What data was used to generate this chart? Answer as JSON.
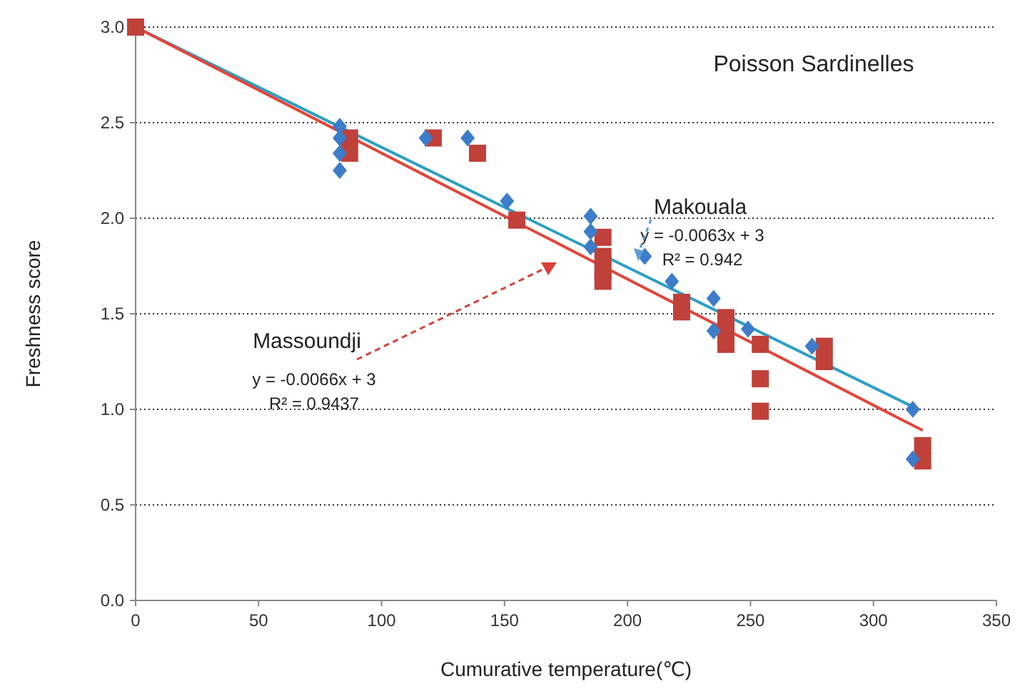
{
  "chart_data": {
    "type": "scatter",
    "title": "Poisson Sardinelles",
    "xlabel": "Cumurative temperature(℃)",
    "ylabel": "Freshness score",
    "xlim": [
      0,
      350
    ],
    "xticks": [
      0,
      50,
      100,
      150,
      200,
      250,
      300,
      350
    ],
    "ylim": [
      0,
      3
    ],
    "yticks": [
      {
        "value": 0,
        "label": "0.0"
      },
      {
        "value": 0.5,
        "label": "0.5"
      },
      {
        "value": 1,
        "label": "1.0"
      },
      {
        "value": 1.5,
        "label": "1.5"
      },
      {
        "value": 2,
        "label": "2.0"
      },
      {
        "value": 2.5,
        "label": "2.5"
      },
      {
        "value": 3,
        "label": "3.0"
      }
    ],
    "grid": "y",
    "series": [
      {
        "marker": "diamond",
        "color": "#3d7cc9",
        "x": [
          83,
          83,
          83,
          83,
          118,
          135,
          151,
          185,
          185,
          185,
          207,
          218,
          235,
          235,
          249,
          275,
          316,
          316
        ],
        "values": [
          2.48,
          2.42,
          2.34,
          2.25,
          2.42,
          2.42,
          2.09,
          2.01,
          1.93,
          1.85,
          1.8,
          1.67,
          1.58,
          1.41,
          1.42,
          1.33,
          1.0,
          0.74
        ]
      },
      {
        "marker": "square",
        "color": "#c0403a",
        "x": [
          0,
          87,
          87,
          121,
          139,
          155,
          190,
          190,
          190,
          190,
          222,
          222,
          240,
          240,
          240,
          254,
          254,
          254,
          280,
          280,
          320,
          320
        ],
        "values": [
          3.0,
          2.42,
          2.34,
          2.42,
          2.34,
          1.99,
          1.9,
          1.8,
          1.72,
          1.67,
          1.56,
          1.51,
          1.48,
          1.42,
          1.34,
          1.34,
          1.16,
          0.99,
          1.33,
          1.25,
          0.81,
          0.73
        ]
      },
      {
        "type": "line",
        "color": "#2e9ec4",
        "x": [
          0,
          315
        ],
        "values": [
          3,
          1.02
        ]
      },
      {
        "type": "line",
        "color": "#e0463a",
        "x": [
          0,
          320
        ],
        "values": [
          3,
          0.89
        ]
      }
    ],
    "annotations": [
      "Makouala",
      "y = -0.0063x + 3",
      "R² = 0.942",
      "Massoundji",
      "y = -0.0066x + 3",
      "R² = 0.9437"
    ]
  }
}
